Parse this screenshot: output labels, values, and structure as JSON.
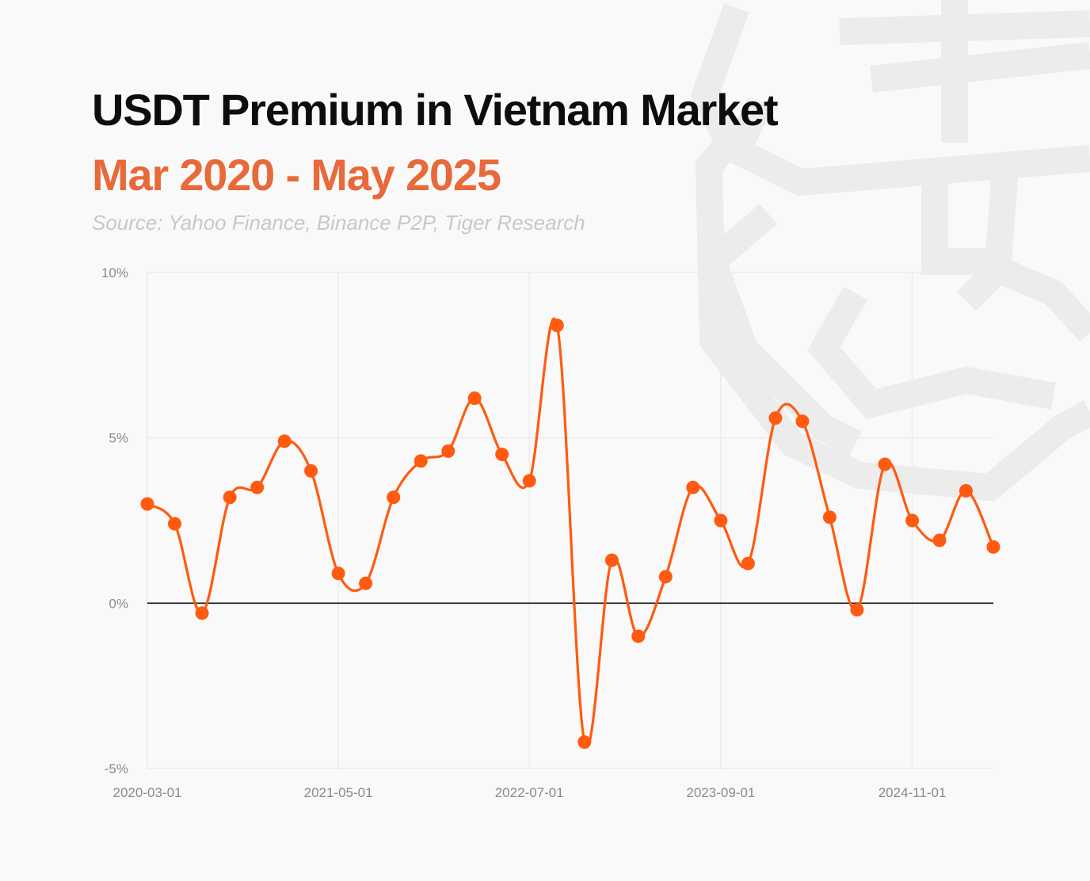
{
  "header": {
    "title": "USDT Premium in Vietnam Market",
    "subtitle": "Mar 2020 - May 2025",
    "source": "Source: Yahoo Finance, Binance P2P, Tiger Research"
  },
  "colors": {
    "line": "#ff5a0f",
    "subtitle": "#e8693a",
    "zero_line": "#111111",
    "grid": "#ececec"
  },
  "chart_data": {
    "type": "line",
    "title": "USDT Premium in Vietnam Market",
    "subtitle": "Mar 2020 - May 2025",
    "xlabel": "",
    "ylabel": "",
    "ylim": [
      -5,
      10
    ],
    "y_ticks": [
      10,
      5,
      0,
      -5
    ],
    "y_tick_labels": [
      "10%",
      "5%",
      "0%",
      "-5%"
    ],
    "x_tick_labels": [
      "2020-03-01",
      "2021-05-01",
      "2022-07-01",
      "2023-09-01",
      "2024-11-01"
    ],
    "x_range": [
      "2020-03-01",
      "2025-05-01"
    ],
    "grid": true,
    "legend": "none",
    "series": [
      {
        "x": [
          "2020-03-01",
          "2020-05-01",
          "2020-07-01",
          "2020-09-01",
          "2020-11-01",
          "2021-01-01",
          "2021-03-01",
          "2021-05-01",
          "2021-07-01",
          "2021-09-01",
          "2021-11-01",
          "2022-01-01",
          "2022-03-01",
          "2022-05-01",
          "2022-07-01",
          "2022-09-01",
          "2022-11-01",
          "2023-01-01",
          "2023-03-01",
          "2023-05-01",
          "2023-07-01",
          "2023-09-01",
          "2023-11-01",
          "2024-01-01",
          "2024-03-01",
          "2024-05-01",
          "2024-07-01",
          "2024-09-01",
          "2024-11-01",
          "2025-01-01",
          "2025-03-01",
          "2025-05-01"
        ],
        "values": [
          3.0,
          2.4,
          -0.3,
          3.2,
          3.5,
          4.9,
          4.0,
          0.9,
          0.6,
          3.2,
          4.3,
          4.6,
          6.2,
          4.5,
          3.7,
          8.4,
          -4.2,
          1.3,
          -1.0,
          0.8,
          3.5,
          2.5,
          1.2,
          5.6,
          5.5,
          2.6,
          -0.2,
          4.2,
          2.5,
          1.9,
          3.4,
          1.7
        ]
      }
    ]
  }
}
